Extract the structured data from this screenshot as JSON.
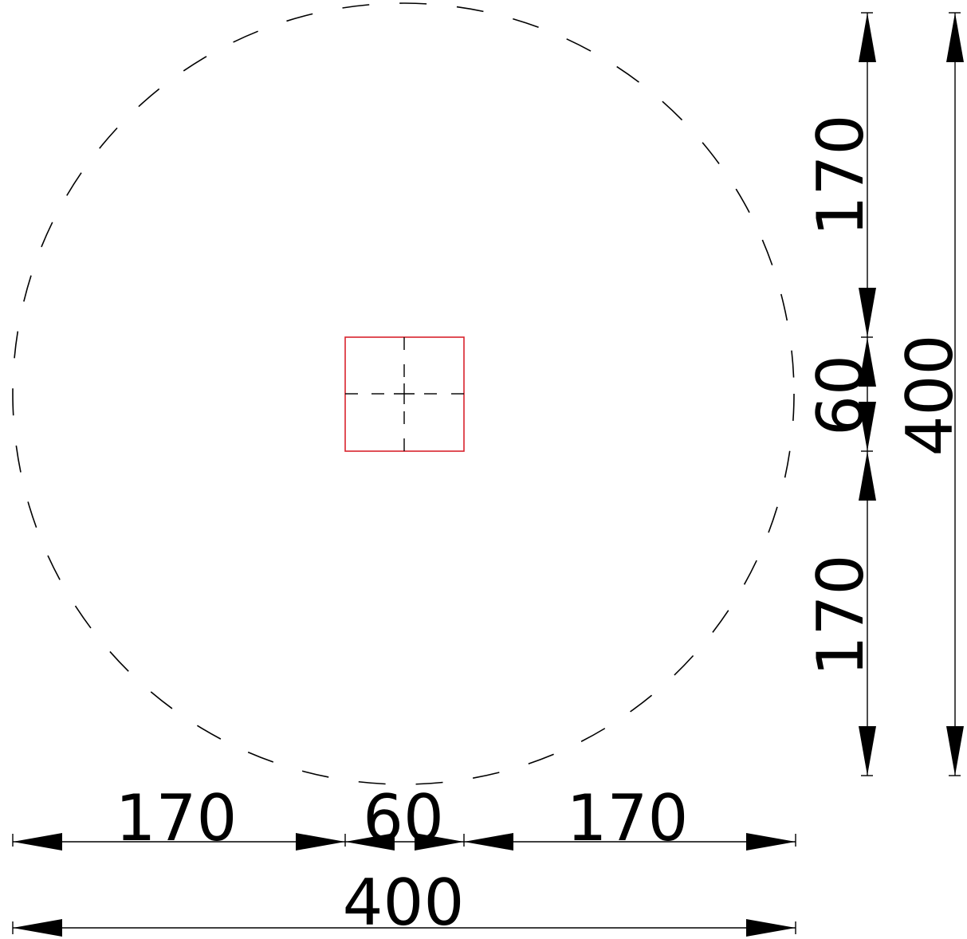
{
  "diagram": {
    "colors": {
      "line": "#000000",
      "square": "#d9232d",
      "background": "#ffffff"
    },
    "horizontal_dimensions": {
      "left_segment": "170",
      "middle_segment": "60",
      "right_segment": "170",
      "overall": "400"
    },
    "vertical_dimensions": {
      "top_segment": "170",
      "middle_segment": "60",
      "bottom_segment": "170",
      "overall": "400"
    }
  }
}
